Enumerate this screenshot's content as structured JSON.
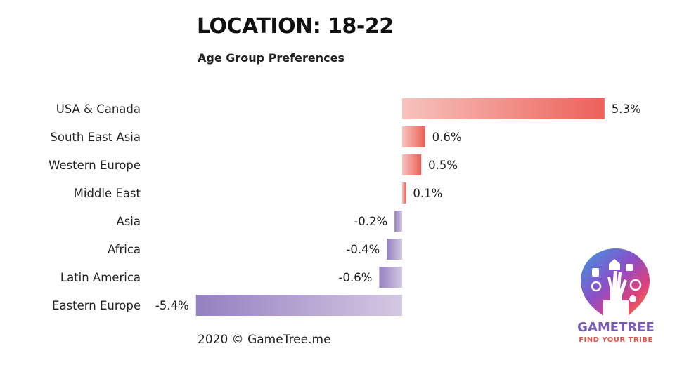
{
  "title": "LOCATION: 18-22",
  "subtitle": "Age Group Preferences",
  "credit": "2020 © GameTree.me",
  "logo": {
    "wordmark": "GAMETREE",
    "tagline": "FIND YOUR TRIBE"
  },
  "colors": {
    "positive_light": "#f7c3bd",
    "positive_dark": "#ec6159",
    "negative_light": "#d4c8e3",
    "negative_dark": "#9580c0"
  },
  "chart_data": {
    "type": "bar",
    "orientation": "horizontal",
    "categories": [
      "USA & Canada",
      "South East Asia",
      "Western Europe",
      "Middle East",
      "Asia",
      "Africa",
      "Latin America",
      "Eastern Europe"
    ],
    "values": [
      5.3,
      0.6,
      0.5,
      0.1,
      -0.2,
      -0.4,
      -0.6,
      -5.4
    ],
    "value_labels": [
      "5.3%",
      "0.6%",
      "0.5%",
      "0.1%",
      "-0.2%",
      "-0.4%",
      "-0.6%",
      "-5.4%"
    ],
    "title": "LOCATION: 18-22",
    "subtitle": "Age Group Preferences",
    "xlabel": "",
    "ylabel": "",
    "xlim": [
      -5.4,
      5.3
    ],
    "grid": false,
    "legend": "none"
  }
}
